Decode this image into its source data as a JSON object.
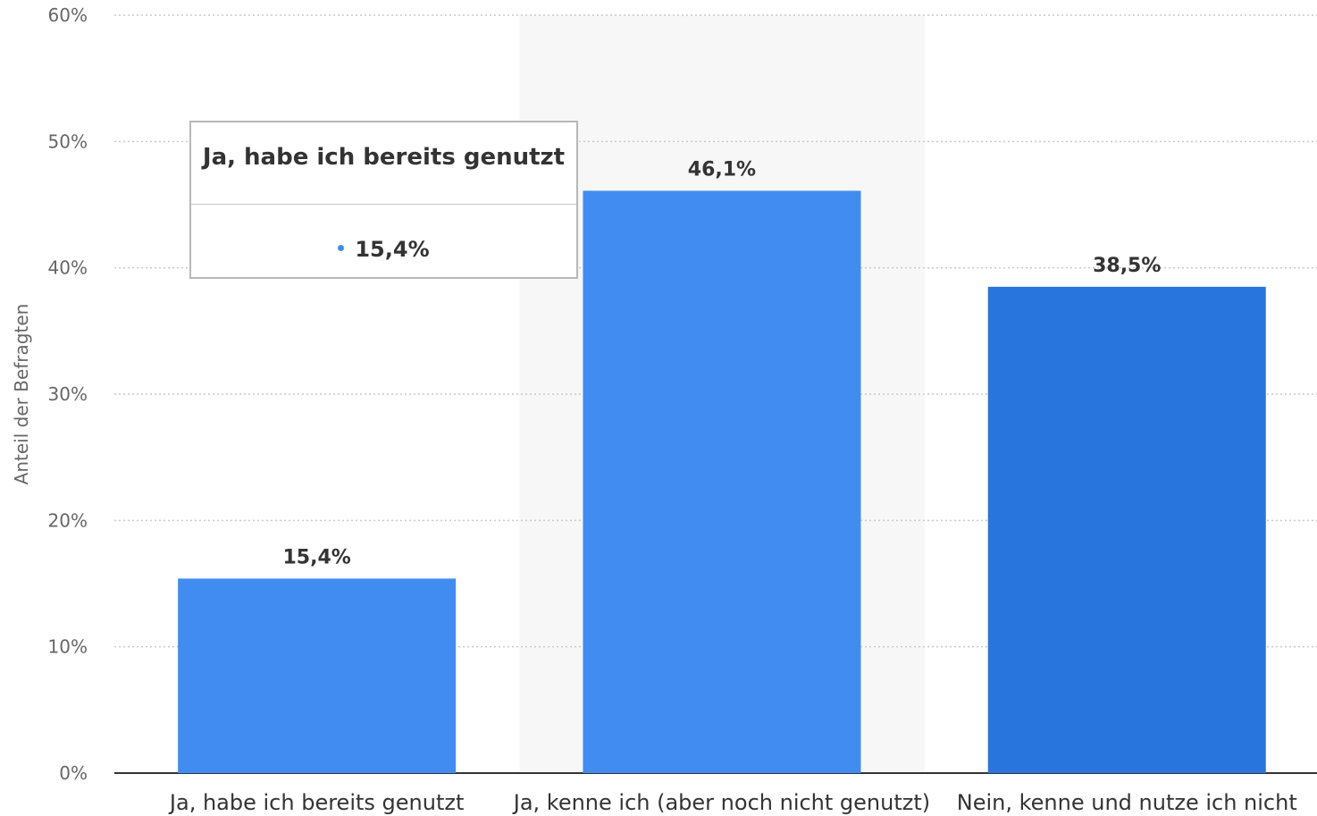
{
  "chart_data": {
    "type": "bar",
    "categories": [
      "Ja, habe ich bereits genutzt",
      "Ja, kenne ich (aber noch nicht genutzt)",
      "Nein, kenne und nutze ich nicht"
    ],
    "values": [
      15.4,
      46.1,
      38.5
    ],
    "value_labels": [
      "15,4%",
      "46,1%",
      "38,5%"
    ],
    "ylabel": "Anteil der Befragten",
    "ylim": [
      0,
      60
    ],
    "yticks": [
      0,
      10,
      20,
      30,
      40,
      50,
      60
    ],
    "ytick_labels": [
      "0%",
      "10%",
      "20%",
      "30%",
      "40%",
      "50%",
      "60%"
    ],
    "grid": true,
    "highlighted_category": 1,
    "colors": {
      "bar": "#418cf1",
      "bar_hover": "#2876dd",
      "grid": "#c9c9c9",
      "axis": "#333333",
      "highlight_band": "#f7f7f7"
    },
    "bar_colors": [
      "#418cf1",
      "#418cf1",
      "#2876dd"
    ]
  },
  "tooltip": {
    "title": "Ja, habe ich bereits genutzt",
    "value": "15,4%",
    "marker_color": "#418cf1"
  }
}
